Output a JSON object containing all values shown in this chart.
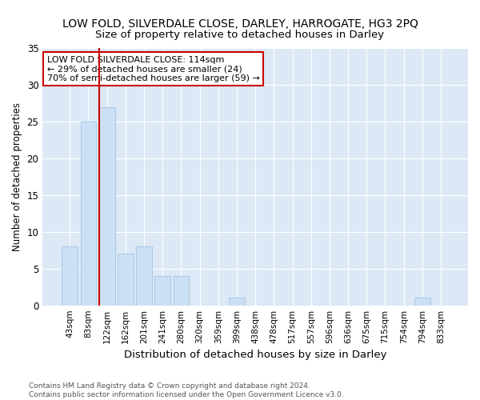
{
  "title": "LOW FOLD, SILVERDALE CLOSE, DARLEY, HARROGATE, HG3 2PQ",
  "subtitle": "Size of property relative to detached houses in Darley",
  "xlabel": "Distribution of detached houses by size in Darley",
  "ylabel": "Number of detached properties",
  "bar_labels": [
    "43sqm",
    "83sqm",
    "122sqm",
    "162sqm",
    "201sqm",
    "241sqm",
    "280sqm",
    "320sqm",
    "359sqm",
    "399sqm",
    "438sqm",
    "478sqm",
    "517sqm",
    "557sqm",
    "596sqm",
    "636sqm",
    "675sqm",
    "715sqm",
    "754sqm",
    "794sqm",
    "833sqm"
  ],
  "bar_values": [
    8,
    25,
    27,
    7,
    8,
    4,
    4,
    0,
    0,
    1,
    0,
    0,
    0,
    0,
    0,
    0,
    0,
    0,
    0,
    1,
    0
  ],
  "bar_color": "#cce0f5",
  "bar_edge_color": "#aac8e8",
  "property_line_color": "#cc0000",
  "annotation_text": "LOW FOLD SILVERDALE CLOSE: 114sqm\n← 29% of detached houses are smaller (24)\n70% of semi-detached houses are larger (59) →",
  "annotation_box_color": "#ffffff",
  "annotation_box_edge_color": "#cc0000",
  "ylim": [
    0,
    35
  ],
  "yticks": [
    0,
    5,
    10,
    15,
    20,
    25,
    30,
    35
  ],
  "bg_color": "#dce8f5",
  "footer_text": "Contains HM Land Registry data © Crown copyright and database right 2024.\nContains public sector information licensed under the Open Government Licence v3.0.",
  "title_fontsize": 10,
  "subtitle_fontsize": 9.5,
  "xlabel_fontsize": 9.5,
  "ylabel_fontsize": 8.5,
  "tick_fontsize": 7.5,
  "annotation_fontsize": 8,
  "footer_fontsize": 6.5
}
